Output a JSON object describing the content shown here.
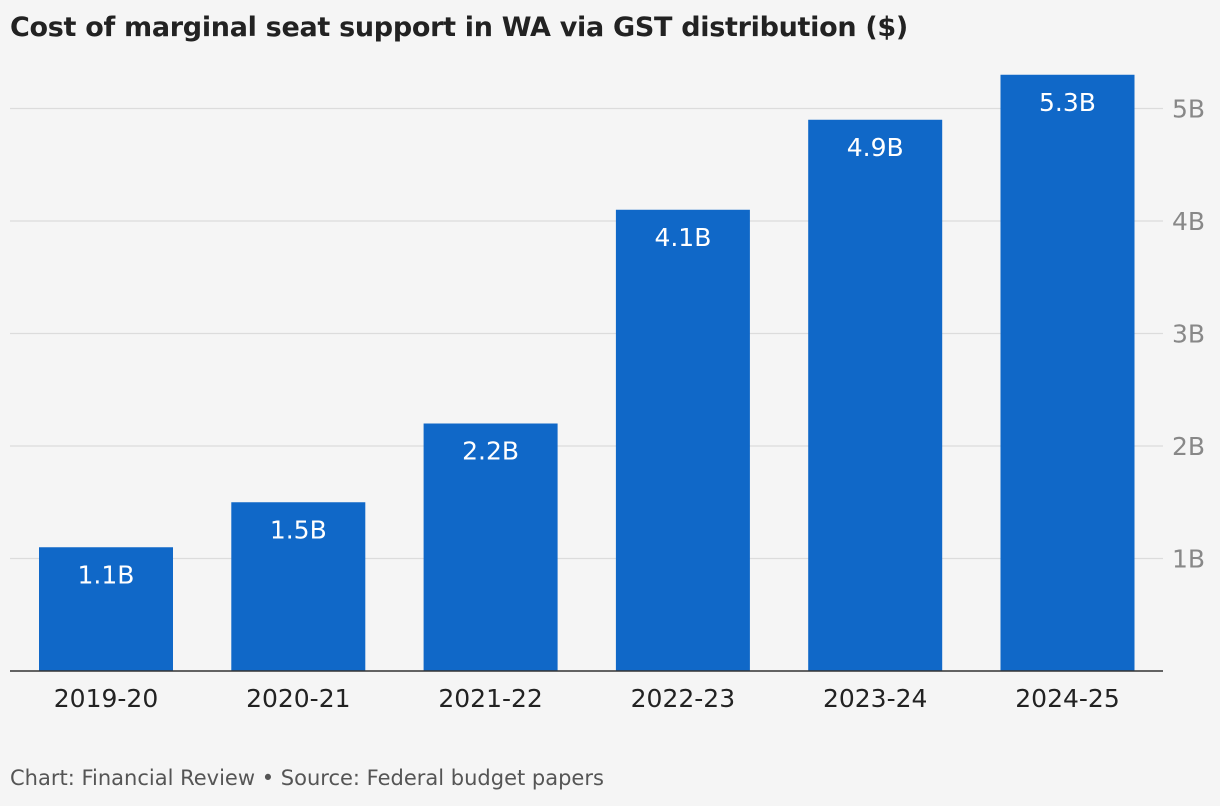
{
  "title": "Cost of marginal seat support in WA via GST distribution ($)",
  "footer": {
    "credit": "Chart: Financial Review",
    "separator": " • ",
    "source": "Source: Federal budget papers"
  },
  "colors": {
    "bar": "#1068c8",
    "grid": "#dcdcdc",
    "axis": "#333333",
    "tick": "#888888",
    "label": "#ffffff",
    "background": "#f5f5f5"
  },
  "chart_data": {
    "type": "bar",
    "title": "Cost of marginal seat support in WA via GST distribution ($)",
    "categories": [
      "2019-20",
      "2020-21",
      "2021-22",
      "2022-23",
      "2023-24",
      "2024-25"
    ],
    "values": [
      1.1,
      1.5,
      2.2,
      4.1,
      4.9,
      5.3
    ],
    "value_labels": [
      "1.1B",
      "1.5B",
      "2.2B",
      "4.1B",
      "4.9B",
      "5.3B"
    ],
    "yticks": [
      1,
      2,
      3,
      4,
      5
    ],
    "ytick_labels": [
      "1B",
      "2B",
      "3B",
      "4B",
      "5B"
    ],
    "ylim": [
      0,
      5.33
    ],
    "y_axis_position": "right",
    "grid": true,
    "legend": "none",
    "xlabel": "",
    "ylabel": ""
  }
}
